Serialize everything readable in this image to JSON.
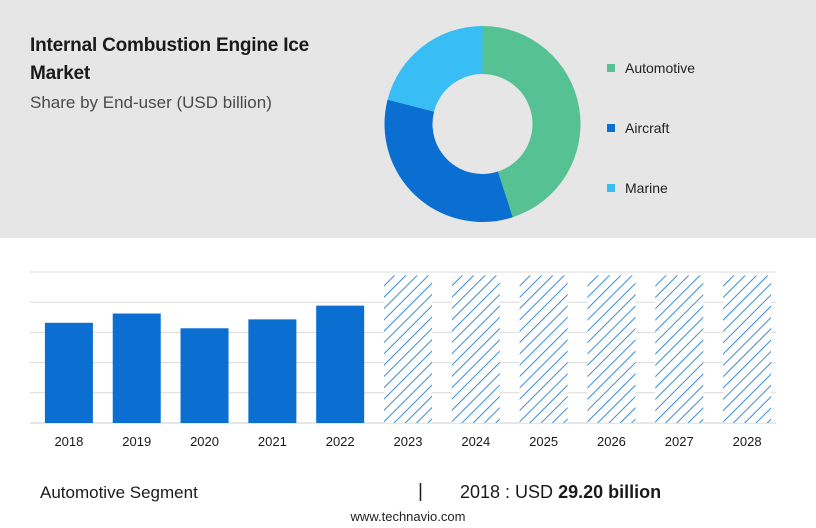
{
  "header": {
    "title": "Internal Combustion Engine Ice Market",
    "subtitle": "Share by End-user (USD billion)"
  },
  "chart_data": [
    {
      "type": "pie",
      "donut": true,
      "categories": [
        "Automotive",
        "Aircraft",
        "Marine"
      ],
      "values": [
        45,
        34,
        21
      ],
      "colors": [
        "#56c193",
        "#0a6fd1",
        "#38bef5"
      ],
      "legend_position": "right"
    },
    {
      "type": "bar",
      "categories": [
        "2018",
        "2019",
        "2020",
        "2021",
        "2022",
        "2023",
        "2024",
        "2025",
        "2026",
        "2027",
        "2028"
      ],
      "values": [
        29.2,
        31.9,
        27.6,
        30.2,
        34.2,
        null,
        null,
        null,
        null,
        null,
        null
      ],
      "forecast_categories": [
        "2023",
        "2024",
        "2025",
        "2026",
        "2027",
        "2028"
      ],
      "forecast_style": "hatched",
      "ylim": [
        0,
        44
      ],
      "grid": true,
      "bar_color": "#0a6fd1",
      "hatch_color": "#0a6fd1"
    }
  ],
  "footer": {
    "segment_label": "Automotive Segment",
    "separator": "|",
    "year_prefix": "2018 : USD",
    "value": "29.20 billion",
    "url": "www.technavio.com"
  }
}
